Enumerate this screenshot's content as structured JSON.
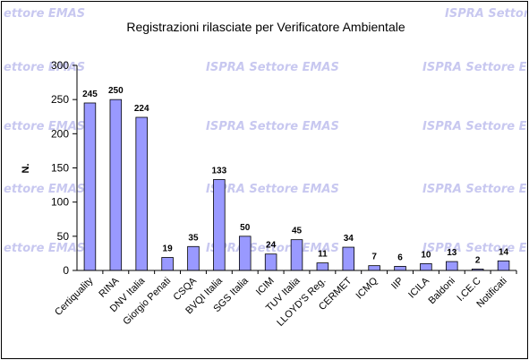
{
  "watermark_text": "ISPRA Settore EMAS",
  "watermark_text_clipped": "ettore EMAS",
  "chart_data": {
    "type": "bar",
    "title": "Registrazioni rilasciate per Verificatore Ambientale",
    "ylabel": "N.",
    "xlabel": "",
    "ylim": [
      0,
      300
    ],
    "yticks": [
      0,
      50,
      100,
      150,
      200,
      250,
      300
    ],
    "grid": false,
    "bar_color": "#9999ff",
    "categories": [
      "Certiquality",
      "RINA",
      "DNV Italia",
      "Giorgio Penati",
      "CSQA",
      "BVQI Italia",
      "SGS Italia",
      "ICIM",
      "TUV Italia",
      "LLOYD'S Reg.",
      "CERMET",
      "ICMQ",
      "IIP",
      "ICILA",
      "Baldoni",
      "I.CE.C",
      "Notificati"
    ],
    "values": [
      245,
      250,
      224,
      19,
      35,
      133,
      50,
      24,
      45,
      11,
      34,
      7,
      6,
      10,
      13,
      2,
      14
    ]
  }
}
